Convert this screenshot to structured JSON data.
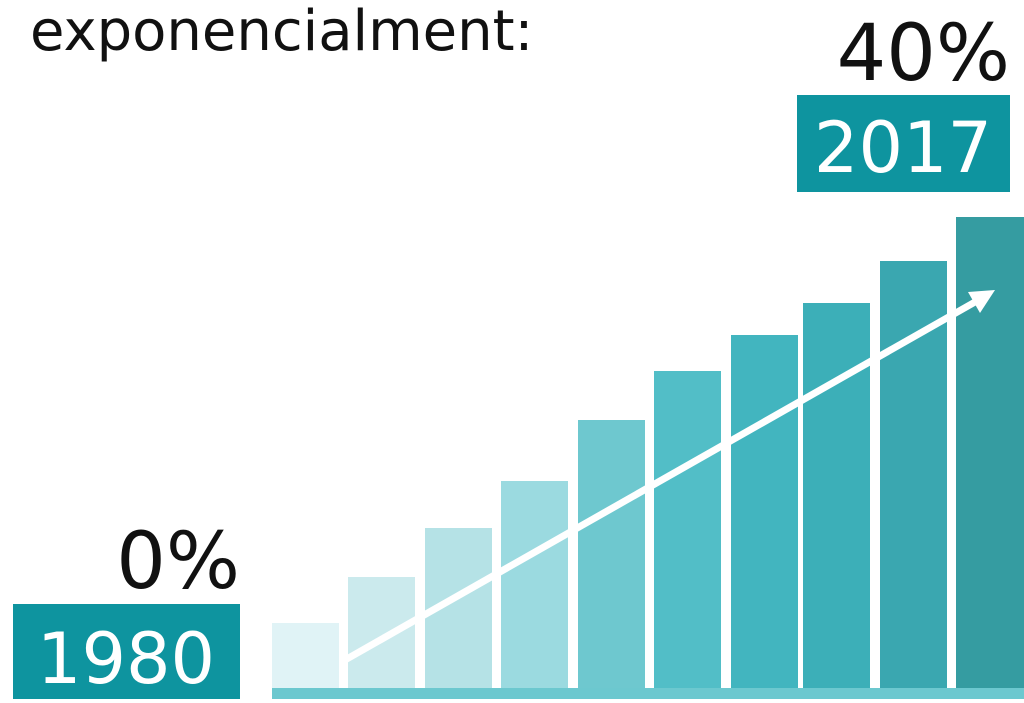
{
  "headline": "exponencialment:",
  "end": {
    "value_text": "40%",
    "year": "2017"
  },
  "start": {
    "value_text": "0%",
    "year": "1980"
  }
}
